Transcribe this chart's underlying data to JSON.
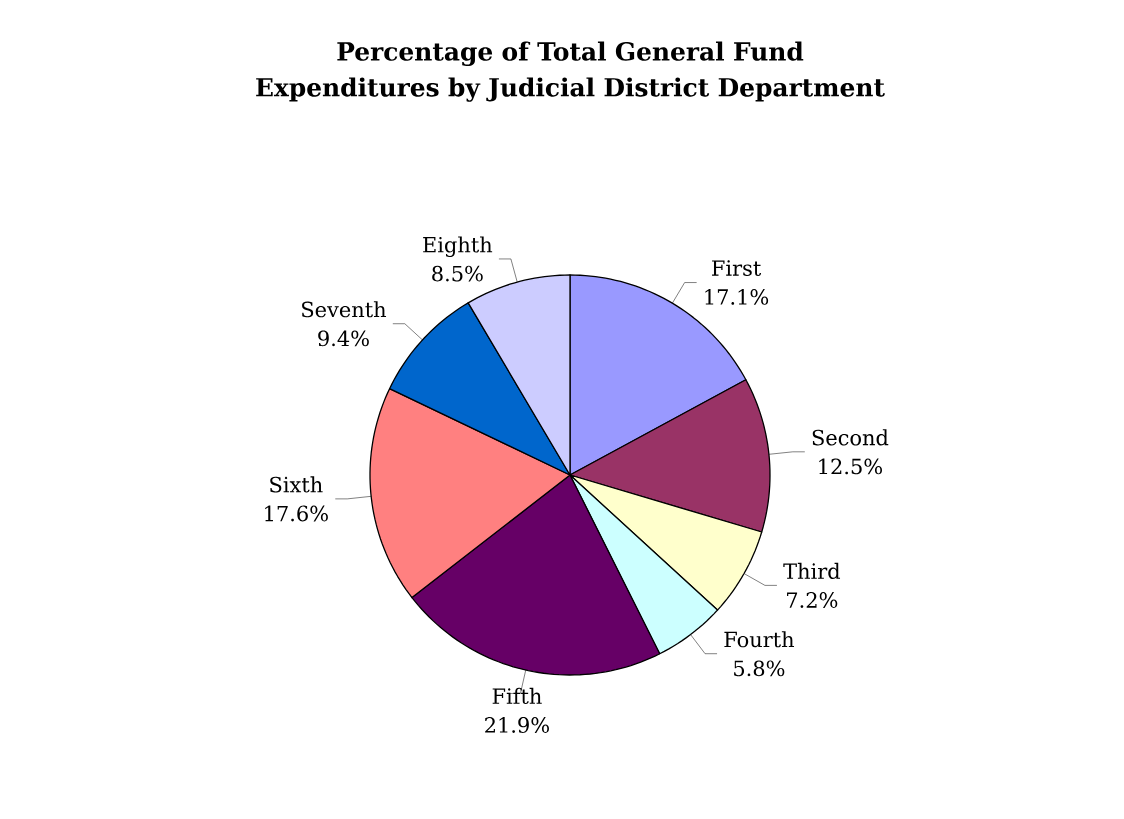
{
  "chart_data": {
    "type": "pie",
    "title": "Percentage of Total General Fund Expenditures by Judicial District Department",
    "categories": [
      "First",
      "Second",
      "Third",
      "Fourth",
      "Fifth",
      "Sixth",
      "Seventh",
      "Eighth"
    ],
    "values": [
      17.1,
      12.5,
      7.2,
      5.8,
      21.9,
      17.6,
      9.4,
      8.5
    ],
    "value_labels": [
      "17.1%",
      "12.5%",
      "7.2%",
      "5.8%",
      "21.9%",
      "17.6%",
      "9.4%",
      "8.5%"
    ],
    "colors": [
      "#9999ff",
      "#993366",
      "#ffffcc",
      "#ccffff",
      "#660066",
      "#ff8080",
      "#0066cc",
      "#ccccff"
    ]
  }
}
